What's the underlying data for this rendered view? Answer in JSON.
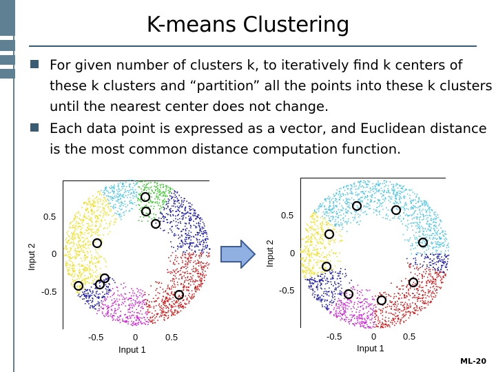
{
  "slide": {
    "title": "K-means Clustering",
    "bullets": [
      "For given number of clusters k, to iteratively find k centers of these k clusters and “partition” all the points into these k clusters until the nearest center does not change.",
      "Each data point is expressed as a vector, and Euclidean distance is the most common distance computation function."
    ],
    "footer": "ML-20"
  },
  "plots": {
    "left": {
      "ylabel": "Input 2",
      "xlabel": "Input 1",
      "yticks": [
        "0.5",
        "0",
        "-0.5"
      ],
      "xticks": [
        "-0.5",
        "0",
        "0.5"
      ]
    },
    "right": {
      "ylabel": "Input 2",
      "xlabel": "Input 1",
      "yticks": [
        "0.5",
        "0",
        "-0.5"
      ],
      "xticks": [
        "-0.5",
        "0",
        "0.5"
      ]
    }
  },
  "colors": {
    "accent": "#5f7f93",
    "title_rule": "#355b74",
    "arrow_fill": "#8fb0e0",
    "arrow_stroke": "#3a5c9a",
    "cluster_yellow": "#f0e020",
    "cluster_cyan": "#4fc8e8",
    "cluster_green": "#2ecc20",
    "cluster_blue": "#1a1aa8",
    "cluster_red": "#d01818",
    "cluster_magenta": "#d020d8"
  }
}
